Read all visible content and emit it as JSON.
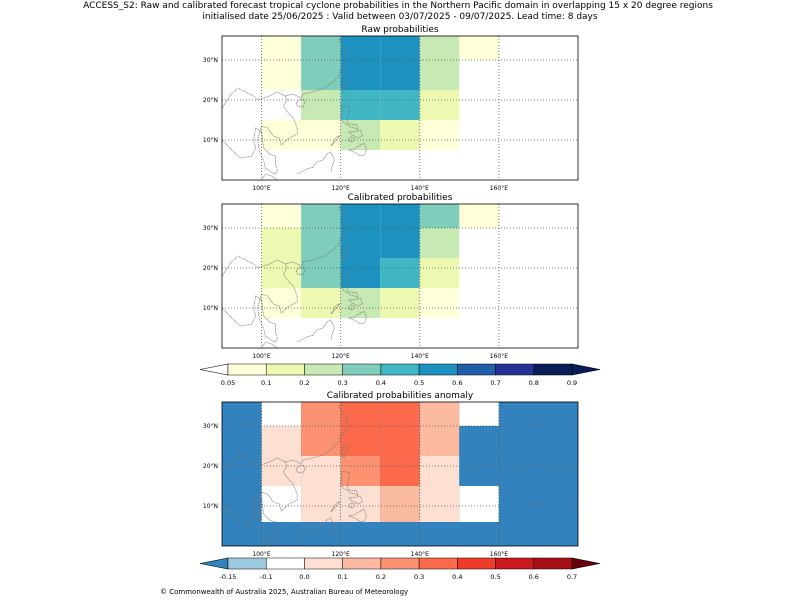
{
  "figure": {
    "title_line1": "ACCESS_S2: Raw and calibrated forecast tropical cyclone probabilities in the Northern Pacific domain in overlapping 15 x 20 degree regions",
    "title_line2": "initialised date 25/06/2025 :  Valid between 03/07/2025 - 09/07/2025. Lead time: 8 days",
    "copyright": "© Commonwealth of Australia 2025, Australian Bureau of Meteorology"
  },
  "colors": {
    "coast": "#777777",
    "grid": "#555555",
    "prob_scale": [
      "#ffffd9",
      "#edf8b1",
      "#c7e9b4",
      "#7fcdbb",
      "#41b6c4",
      "#1d91c0",
      "#225ea8",
      "#253494",
      "#081d58"
    ],
    "prob_under": "#ffffff",
    "prob_over": "#081d58",
    "anom_scale": [
      "#9ecae1",
      "#ffffff",
      "#fee0d2",
      "#fcbba1",
      "#fc9272",
      "#fb6a4a",
      "#ef3b2c",
      "#cb181d",
      "#a50f15"
    ],
    "anom_under": "#3182bd",
    "anom_over": "#67000d"
  },
  "chart_data": [
    {
      "type": "heatmap",
      "title": "Raw probabilities",
      "xlim": [
        90,
        180
      ],
      "ylim": [
        0,
        36
      ],
      "x_ticks": [
        100,
        120,
        140,
        160
      ],
      "x_tick_labels": [
        "100°E",
        "120°E",
        "140°E",
        "160°E"
      ],
      "y_ticks": [
        10,
        20,
        30
      ],
      "y_tick_labels": [
        "10°N",
        "20°N",
        "30°N"
      ],
      "cell_lon_edges": [
        100,
        110,
        120,
        130,
        140,
        150,
        160
      ],
      "cell_lat_edges": [
        7.5,
        15,
        22.5,
        30,
        36
      ],
      "values": [
        [
          0.05,
          0.07,
          0.2,
          0.12,
          0.07,
          0.0
        ],
        [
          0.0,
          0.2,
          0.45,
          0.45,
          0.12,
          0.0
        ],
        [
          0.05,
          0.35,
          0.55,
          0.55,
          0.2,
          0.0
        ],
        [
          0.07,
          0.35,
          0.55,
          0.55,
          0.2,
          0.07
        ]
      ],
      "grid": true
    },
    {
      "type": "heatmap",
      "title": "Calibrated probabilities",
      "xlim": [
        90,
        180
      ],
      "ylim": [
        0,
        36
      ],
      "x_ticks": [
        100,
        120,
        140,
        160
      ],
      "x_tick_labels": [
        "100°E",
        "120°E",
        "140°E",
        "160°E"
      ],
      "y_ticks": [
        10,
        20,
        30
      ],
      "y_tick_labels": [
        "10°N",
        "20°N",
        "30°N"
      ],
      "cell_lon_edges": [
        100,
        110,
        120,
        130,
        140,
        150,
        160
      ],
      "cell_lat_edges": [
        7.5,
        15,
        22.5,
        30,
        36
      ],
      "values": [
        [
          0.05,
          0.12,
          0.2,
          0.12,
          0.07,
          0.0
        ],
        [
          0.12,
          0.35,
          0.55,
          0.45,
          0.12,
          0.0
        ],
        [
          0.12,
          0.35,
          0.55,
          0.55,
          0.2,
          0.0
        ],
        [
          0.07,
          0.35,
          0.55,
          0.55,
          0.35,
          0.07
        ]
      ],
      "grid": true
    },
    {
      "type": "heatmap",
      "title": "Calibrated probabilities anomaly",
      "xlim": [
        90,
        180
      ],
      "ylim": [
        0,
        36
      ],
      "x_ticks": [
        100,
        120,
        140,
        160
      ],
      "x_tick_labels": [
        "100°E",
        "120°E",
        "140°E",
        "160°E"
      ],
      "y_ticks": [
        10,
        20,
        30
      ],
      "y_tick_labels": [
        "10°N",
        "20°N",
        "30°N"
      ],
      "background_value": -0.2,
      "cell_lon_edges": [
        100,
        110,
        120,
        130,
        140,
        150,
        160,
        180
      ],
      "cell_lat_edges": [
        6,
        15,
        22.5,
        30,
        36
      ],
      "values": [
        [
          -0.1,
          0.0,
          0.0,
          0.1,
          0.0,
          -0.1,
          -0.2
        ],
        [
          0.0,
          0.0,
          0.2,
          0.3,
          0.0,
          -0.2,
          -0.2
        ],
        [
          0.0,
          0.2,
          0.3,
          0.3,
          0.1,
          -0.2,
          -0.2
        ],
        [
          -0.1,
          0.2,
          0.3,
          0.3,
          0.1,
          -0.1,
          -0.2
        ]
      ],
      "grid": true
    }
  ],
  "colorbars": [
    {
      "levels": [
        0.05,
        0.1,
        0.2,
        0.3,
        0.4,
        0.5,
        0.6,
        0.7,
        0.8,
        0.9
      ],
      "tick_labels": [
        "0.05",
        "0.1",
        "0.2",
        "0.3",
        "0.4",
        "0.5",
        "0.6",
        "0.7",
        "0.8",
        "0.9"
      ]
    },
    {
      "levels": [
        -0.15,
        -0.1,
        0.0,
        0.1,
        0.2,
        0.3,
        0.4,
        0.5,
        0.6,
        0.7
      ],
      "tick_labels": [
        "-0.15",
        "-0.1",
        "0.0",
        "0.1",
        "0.2",
        "0.3",
        "0.4",
        "0.5",
        "0.6",
        "0.7"
      ]
    }
  ]
}
